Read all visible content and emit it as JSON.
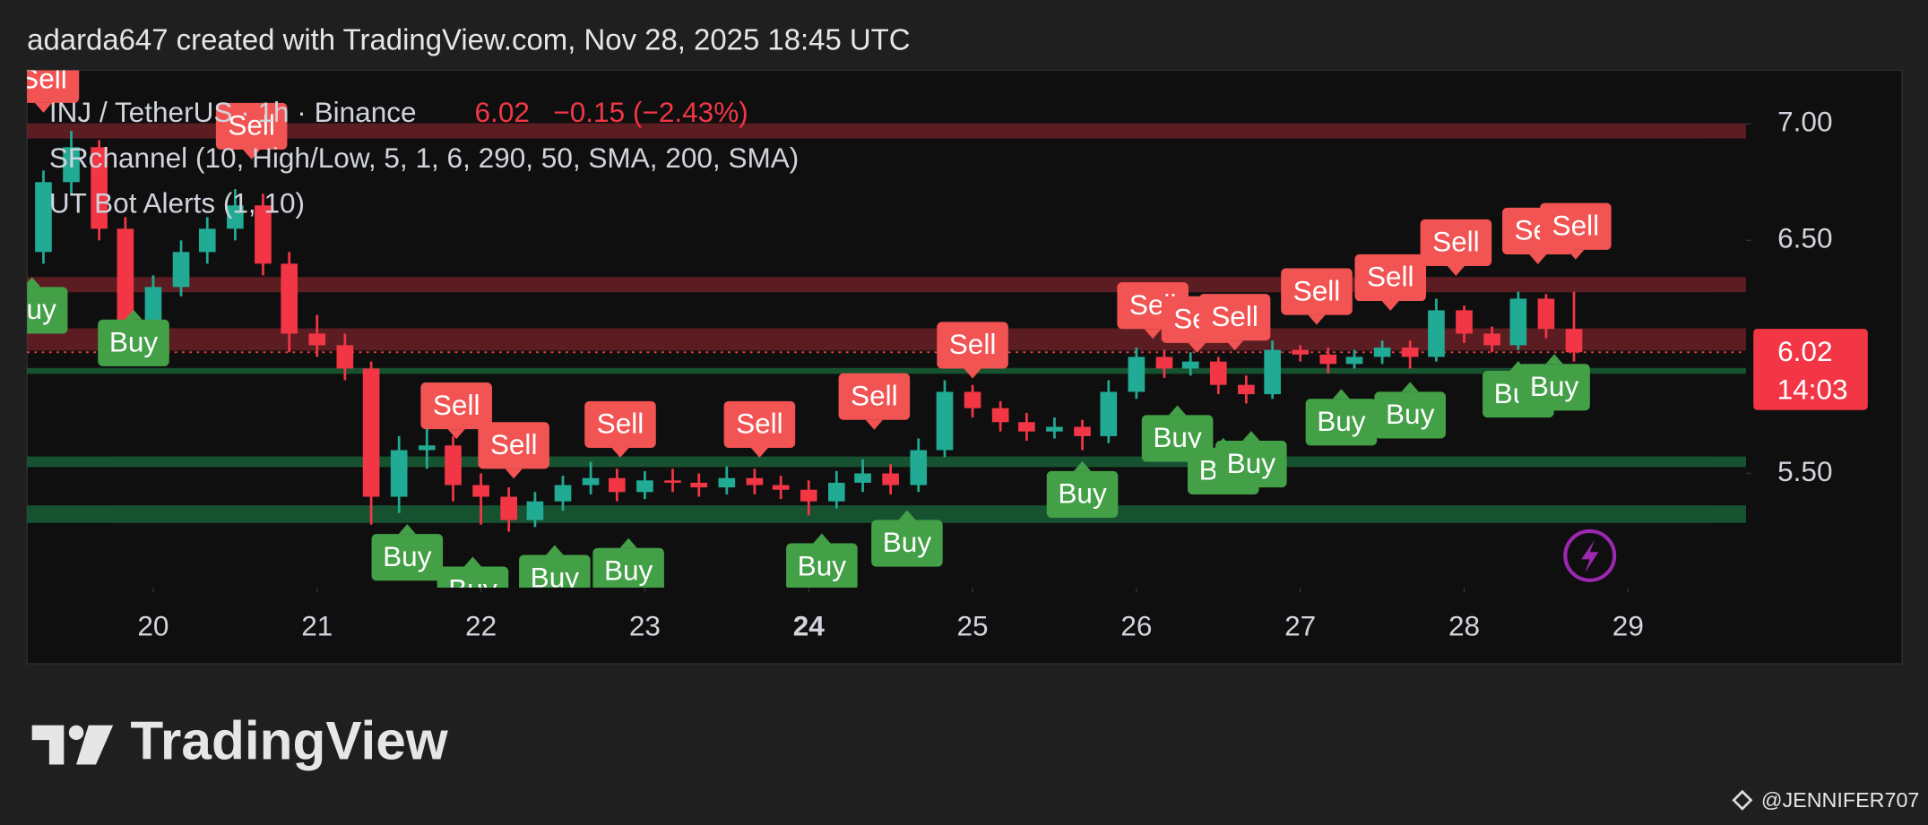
{
  "header": "adarda647 created with TradingView.com, Nov 28, 2025 18:45 UTC",
  "chart_data": {
    "type": "candlestick",
    "symbol": "INJ / TetherUS · 1h · Binance",
    "last": 6.02,
    "change": "−0.15 (−2.43%)",
    "countdown": "14:03",
    "indicators": [
      "SRchannel (10, High/Low, 5, 1, 6, 290, 50, SMA, 200, SMA)",
      "UT Bot Alerts (1, 10)"
    ],
    "xlim": [
      19.23,
      29.72
    ],
    "xticks": [
      20,
      21,
      22,
      23,
      24,
      25,
      26,
      27,
      28,
      29
    ],
    "bold_xtick": 24,
    "ylim": [
      5.01,
      7.23
    ],
    "yticks": [
      {
        "value": 7,
        "label": "7.00"
      },
      {
        "value": 6.5,
        "label": "6.50"
      },
      {
        "value": 5.5,
        "label": "5.50"
      }
    ],
    "up_color": "#22ab94",
    "down_color": "#f23645",
    "x": [
      19.33,
      19.5,
      19.67,
      19.83,
      20.0,
      20.17,
      20.33,
      20.5,
      20.67,
      20.83,
      21.0,
      21.17,
      21.33,
      21.5,
      21.67,
      21.83,
      22.0,
      22.17,
      22.33,
      22.5,
      22.67,
      22.83,
      23.0,
      23.17,
      23.33,
      23.5,
      23.67,
      23.83,
      24.0,
      24.17,
      24.33,
      24.5,
      24.67,
      24.83,
      25.0,
      25.17,
      25.33,
      25.5,
      25.67,
      25.83,
      26.0,
      26.17,
      26.33,
      26.5,
      26.67,
      26.83,
      27.0,
      27.17,
      27.33,
      27.5,
      27.67,
      27.83,
      28.0,
      28.17,
      28.33,
      28.5,
      28.67
    ],
    "open": [
      6.45,
      6.75,
      6.9,
      6.55,
      6.15,
      6.3,
      6.45,
      6.55,
      6.65,
      6.4,
      6.1,
      6.05,
      5.95,
      5.4,
      5.6,
      5.62,
      5.45,
      5.4,
      5.3,
      5.38,
      5.45,
      5.48,
      5.42,
      5.47,
      5.46,
      5.44,
      5.48,
      5.45,
      5.43,
      5.38,
      5.46,
      5.5,
      5.45,
      5.6,
      5.85,
      5.78,
      5.72,
      5.68,
      5.7,
      5.66,
      5.85,
      6.0,
      5.95,
      5.98,
      5.88,
      5.84,
      6.03,
      6.01,
      5.97,
      6.0,
      6.04,
      6.0,
      6.2,
      6.1,
      6.05,
      6.25,
      6.12
    ],
    "high": [
      6.8,
      6.97,
      6.93,
      6.6,
      6.35,
      6.5,
      6.6,
      6.72,
      6.7,
      6.45,
      6.18,
      6.1,
      5.98,
      5.66,
      5.7,
      5.66,
      5.5,
      5.44,
      5.42,
      5.49,
      5.55,
      5.52,
      5.51,
      5.52,
      5.5,
      5.53,
      5.52,
      5.49,
      5.47,
      5.51,
      5.56,
      5.54,
      5.65,
      5.9,
      5.88,
      5.81,
      5.76,
      5.74,
      5.73,
      5.9,
      6.04,
      6.03,
      6.02,
      6.0,
      5.92,
      6.07,
      6.05,
      6.04,
      6.03,
      6.07,
      6.07,
      6.25,
      6.22,
      6.13,
      6.28,
      6.27,
      6.28
    ],
    "low": [
      6.4,
      6.7,
      6.5,
      6.08,
      6.1,
      6.26,
      6.4,
      6.5,
      6.35,
      6.02,
      6.0,
      5.9,
      5.28,
      5.33,
      5.52,
      5.38,
      5.28,
      5.25,
      5.27,
      5.34,
      5.41,
      5.38,
      5.39,
      5.42,
      5.4,
      5.41,
      5.41,
      5.39,
      5.32,
      5.35,
      5.42,
      5.41,
      5.42,
      5.57,
      5.74,
      5.68,
      5.64,
      5.65,
      5.6,
      5.63,
      5.82,
      5.91,
      5.92,
      5.84,
      5.8,
      5.82,
      5.98,
      5.93,
      5.95,
      5.97,
      5.95,
      5.98,
      6.06,
      6.02,
      6.03,
      6.08,
      5.98
    ],
    "close": [
      6.75,
      6.9,
      6.55,
      6.15,
      6.3,
      6.45,
      6.55,
      6.65,
      6.4,
      6.1,
      6.05,
      5.95,
      5.4,
      5.6,
      5.62,
      5.45,
      5.4,
      5.3,
      5.38,
      5.45,
      5.48,
      5.42,
      5.47,
      5.46,
      5.44,
      5.48,
      5.45,
      5.43,
      5.38,
      5.46,
      5.5,
      5.45,
      5.6,
      5.85,
      5.78,
      5.72,
      5.68,
      5.7,
      5.66,
      5.85,
      6.0,
      5.95,
      5.98,
      5.88,
      5.84,
      6.03,
      6.01,
      5.97,
      6.0,
      6.04,
      6.0,
      6.2,
      6.1,
      6.05,
      6.25,
      6.12,
      6.02
    ],
    "zones": [
      {
        "low": 6.94,
        "high": 7.0,
        "color": "#9c2a33"
      },
      {
        "low": 6.28,
        "high": 6.34,
        "color": "#9c2a33"
      },
      {
        "low": 6.03,
        "high": 6.12,
        "color": "#9c2a33"
      },
      {
        "low": 5.93,
        "high": 5.95,
        "color": "#1e8a4c"
      },
      {
        "low": 5.53,
        "high": 5.57,
        "color": "#1e8a4c"
      },
      {
        "low": 5.29,
        "high": 5.36,
        "color": "#1e8a4c"
      }
    ],
    "signals": [
      {
        "label": "Sell",
        "x": 19.33,
        "price": 7.19
      },
      {
        "label": "Sell",
        "x": 20.6,
        "price": 6.99
      },
      {
        "label": "Sell",
        "x": 21.85,
        "price": 5.79
      },
      {
        "label": "Sell",
        "x": 22.2,
        "price": 5.62
      },
      {
        "label": "Sell",
        "x": 22.85,
        "price": 5.71
      },
      {
        "label": "Sell",
        "x": 23.7,
        "price": 5.71
      },
      {
        "label": "Sell",
        "x": 24.4,
        "price": 5.83
      },
      {
        "label": "Sell",
        "x": 25.0,
        "price": 6.05
      },
      {
        "label": "Sell",
        "x": 26.1,
        "price": 6.22
      },
      {
        "label": "Sell",
        "x": 26.37,
        "price": 6.16
      },
      {
        "label": "Sell",
        "x": 26.6,
        "price": 6.17
      },
      {
        "label": "Sell",
        "x": 27.1,
        "price": 6.28
      },
      {
        "label": "Sell",
        "x": 27.55,
        "price": 6.34
      },
      {
        "label": "Sell",
        "x": 27.95,
        "price": 6.49
      },
      {
        "label": "Sell",
        "x": 28.45,
        "price": 6.54
      },
      {
        "label": "Sell",
        "x": 28.68,
        "price": 6.56
      },
      {
        "label": "Buy",
        "x": 19.26,
        "price": 6.2
      },
      {
        "label": "Buy",
        "x": 19.88,
        "price": 6.06
      },
      {
        "label": "Buy",
        "x": 21.55,
        "price": 5.14
      },
      {
        "label": "Buy",
        "x": 21.95,
        "price": 5.0
      },
      {
        "label": "Buy",
        "x": 22.45,
        "price": 5.05
      },
      {
        "label": "Buy",
        "x": 22.9,
        "price": 5.08
      },
      {
        "label": "Buy",
        "x": 24.08,
        "price": 5.1
      },
      {
        "label": "Buy",
        "x": 24.6,
        "price": 5.2
      },
      {
        "label": "Buy",
        "x": 25.67,
        "price": 5.41
      },
      {
        "label": "Buy",
        "x": 26.25,
        "price": 5.65
      },
      {
        "label": "Buy",
        "x": 26.53,
        "price": 5.51
      },
      {
        "label": "Buy",
        "x": 26.7,
        "price": 5.54
      },
      {
        "label": "Buy",
        "x": 27.25,
        "price": 5.72
      },
      {
        "label": "Buy",
        "x": 27.67,
        "price": 5.75
      },
      {
        "label": "Buy",
        "x": 28.33,
        "price": 5.84
      },
      {
        "label": "Buy",
        "x": 28.55,
        "price": 5.87
      }
    ]
  },
  "footer": {
    "logo": "TradingView",
    "watermark": "@JENNIFER707"
  }
}
